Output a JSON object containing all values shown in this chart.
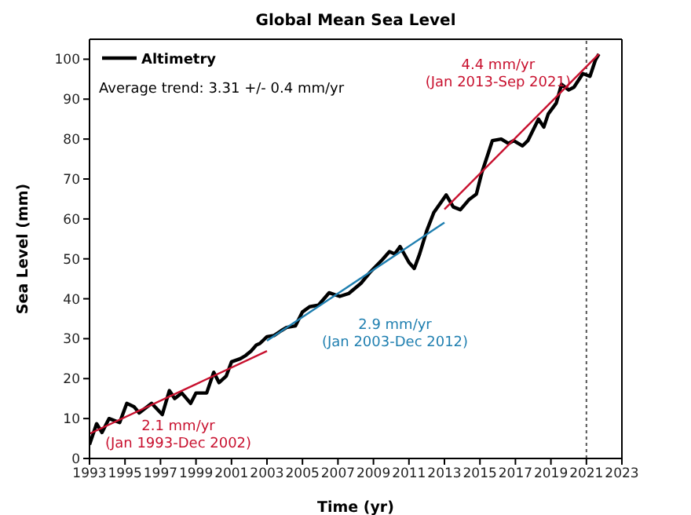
{
  "chart_data": {
    "type": "line",
    "title": "Global Mean Sea Level",
    "xlabel": "Time (yr)",
    "ylabel": "Sea Level (mm)",
    "annotations": [
      "Average trend: 3.31 +/- 0.4 mm/yr"
    ],
    "xlim": [
      1993,
      2023
    ],
    "xticks": [
      1993,
      1995,
      1997,
      1999,
      2001,
      2003,
      2005,
      2007,
      2009,
      2011,
      2013,
      2015,
      2017,
      2019,
      2021,
      2023
    ],
    "ylim": [
      0,
      105
    ],
    "yticks": [
      0,
      10,
      20,
      30,
      40,
      50,
      60,
      70,
      80,
      90,
      100
    ],
    "grid": false,
    "legend": "top left",
    "marker": "none",
    "line_style": "solid",
    "ref_lines": [
      {
        "axis": "x",
        "value": 2021,
        "color": "#555555",
        "line_style": "dotted"
      }
    ],
    "series": [
      {
        "name": "Altimetry",
        "color": "#000000",
        "x": [
          1993.0,
          1993.4,
          1993.7,
          1994.1,
          1994.7,
          1995.1,
          1995.5,
          1995.8,
          1996.5,
          1997.1,
          1997.5,
          1997.8,
          1998.2,
          1998.7,
          1999.0,
          1999.6,
          2000.0,
          2000.3,
          2000.7,
          2001.0,
          2001.5,
          2001.8,
          2002.1,
          2002.4,
          2002.6,
          2003.0,
          2003.4,
          2003.8,
          2004.1,
          2004.6,
          2005.0,
          2005.4,
          2005.9,
          2006.5,
          2007.1,
          2007.6,
          2008.3,
          2008.8,
          2009.5,
          2009.9,
          2010.2,
          2010.5,
          2011.0,
          2011.3,
          2011.6,
          2012.0,
          2012.4,
          2013.1,
          2013.5,
          2013.9,
          2014.4,
          2014.8,
          2015.1,
          2015.45,
          2015.7,
          2016.2,
          2016.6,
          2016.9,
          2017.4,
          2017.7,
          2018.0,
          2018.3,
          2018.6,
          2018.85,
          2019.3,
          2019.6,
          2020.0,
          2020.3,
          2020.8,
          2021.2,
          2021.5,
          2021.7
        ],
        "values": [
          3.5,
          8.7,
          6.5,
          10,
          9,
          13.8,
          13,
          11.4,
          13.8,
          11,
          17,
          15,
          16.4,
          13.8,
          16.4,
          16.4,
          21.6,
          19,
          20.6,
          24.2,
          25,
          25.8,
          26.9,
          28.4,
          28.8,
          30.5,
          30.8,
          32,
          32.8,
          33.2,
          36.7,
          38,
          38.4,
          41.5,
          40.6,
          41.3,
          43.9,
          46.6,
          49.8,
          51.8,
          51.2,
          53.1,
          49.1,
          47.6,
          51.2,
          57,
          61.6,
          66,
          63,
          62.3,
          64.9,
          66.2,
          71.5,
          76.2,
          79.6,
          80,
          78.9,
          79.6,
          78.3,
          79.6,
          82.3,
          85,
          83,
          86.3,
          89,
          93.7,
          92.3,
          93,
          96.4,
          95.7,
          99.7,
          101.3
        ]
      },
      {
        "type": "line",
        "name": "2.1 mm/yr\n(Jan 1993-Dec 2002)",
        "color": "#c8102e",
        "x": [
          1993.0,
          2003.0
        ],
        "values": [
          6.2,
          26.9
        ]
      },
      {
        "type": "line",
        "name": "2.9 mm/yr\n(Jan 2003-Dec 2012)",
        "color": "#1f7fb0",
        "x": [
          2003.0,
          2013.0
        ],
        "values": [
          29.5,
          59.1
        ]
      },
      {
        "type": "line",
        "name": "4.4 mm/yr\n(Jan 2013-Sep 2021)",
        "color": "#c8102e",
        "x": [
          2013.0,
          2021.7
        ],
        "values": [
          62.4,
          101.3
        ]
      }
    ]
  }
}
